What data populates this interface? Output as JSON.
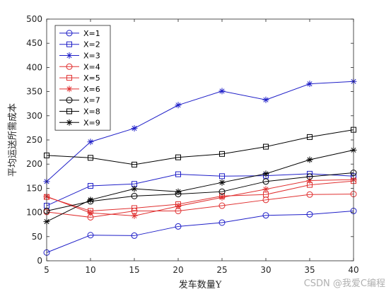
{
  "chart_data": {
    "type": "line",
    "title": "",
    "xlabel": "发车数量Y",
    "ylabel": "平均运送所需成本",
    "x": [
      5,
      10,
      15,
      20,
      25,
      30,
      35,
      40
    ],
    "xlim": [
      5,
      40
    ],
    "ylim": [
      0,
      500
    ],
    "xticks": [
      5,
      10,
      15,
      20,
      25,
      30,
      35,
      40
    ],
    "yticks": [
      0,
      50,
      100,
      150,
      200,
      250,
      300,
      350,
      400,
      450,
      500
    ],
    "grid": false,
    "legend_position": "top-left",
    "series": [
      {
        "name": "X=1",
        "color": "#1f1fc8",
        "marker": "circle",
        "values": [
          17,
          53,
          52,
          71,
          79,
          94,
          96,
          103
        ]
      },
      {
        "name": "X=2",
        "color": "#1f1fc8",
        "marker": "square",
        "values": [
          114,
          155,
          159,
          179,
          175,
          176,
          180,
          175
        ]
      },
      {
        "name": "X=3",
        "color": "#1f1fc8",
        "marker": "asterisk",
        "values": [
          164,
          246,
          274,
          322,
          351,
          333,
          366,
          371
        ]
      },
      {
        "name": "X=4",
        "color": "#e03030",
        "marker": "circle",
        "values": [
          101,
          90,
          103,
          103,
          114,
          126,
          137,
          138
        ]
      },
      {
        "name": "X=5",
        "color": "#e03030",
        "marker": "square",
        "values": [
          132,
          103,
          109,
          117,
          134,
          137,
          157,
          165
        ]
      },
      {
        "name": "X=6",
        "color": "#e03030",
        "marker": "asterisk",
        "values": [
          133,
          99,
          93,
          113,
          131,
          148,
          166,
          168
        ]
      },
      {
        "name": "X=7",
        "color": "#000000",
        "marker": "circle",
        "values": [
          103,
          123,
          134,
          138,
          143,
          164,
          174,
          182
        ]
      },
      {
        "name": "X=8",
        "color": "#000000",
        "marker": "square",
        "values": [
          218,
          213,
          199,
          214,
          221,
          236,
          256,
          271
        ]
      },
      {
        "name": "X=9",
        "color": "#000000",
        "marker": "asterisk",
        "values": [
          81,
          126,
          149,
          143,
          162,
          180,
          209,
          229
        ]
      }
    ]
  },
  "watermark": "CSDN @我爱C编程"
}
